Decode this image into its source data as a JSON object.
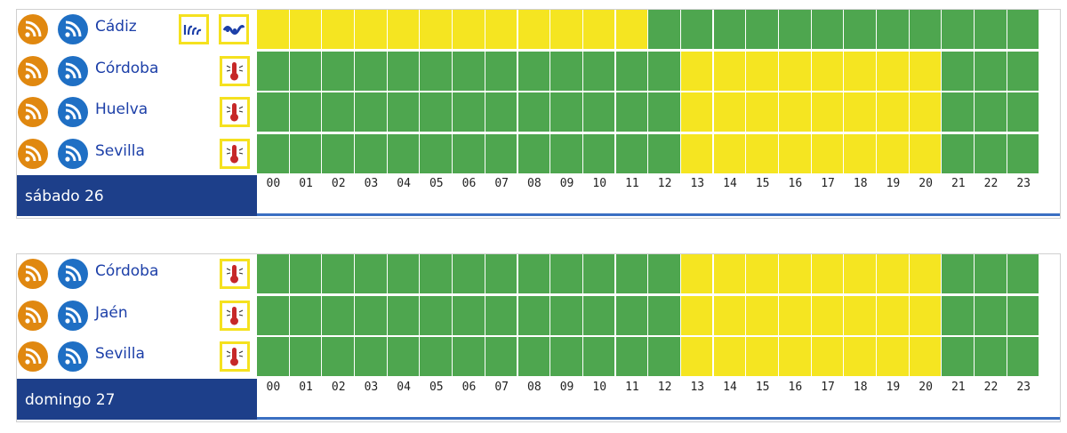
{
  "colors": {
    "green": "#4ea64f",
    "yellow": "#f5e521",
    "day_bg": "#1d3f8a",
    "link": "#1c3fa8"
  },
  "hours": [
    "00",
    "01",
    "02",
    "03",
    "04",
    "05",
    "06",
    "07",
    "08",
    "09",
    "10",
    "11",
    "12",
    "13",
    "14",
    "15",
    "16",
    "17",
    "18",
    "19",
    "20",
    "21",
    "22",
    "23"
  ],
  "days": [
    {
      "label": "sábado 26",
      "rows": [
        {
          "province": "Cádiz",
          "warnings": [
            "coastal-wave-icon",
            "wind-wave-icon"
          ],
          "levels": "yyyyyyyyyyyygggggggggggg"
        },
        {
          "province": "Córdoba",
          "warnings": [
            "thermometer-icon"
          ],
          "levels": "gggggggggggggyyyyyyyyggg"
        },
        {
          "province": "Huelva",
          "warnings": [
            "thermometer-icon"
          ],
          "levels": "gggggggggggggyyyyyyyyggg"
        },
        {
          "province": "Sevilla",
          "warnings": [
            "thermometer-icon"
          ],
          "levels": "gggggggggggggyyyyyyyyggg"
        }
      ]
    },
    {
      "label": "domingo 27",
      "rows": [
        {
          "province": "Córdoba",
          "warnings": [
            "thermometer-icon"
          ],
          "levels": "gggggggggggggyyyyyyyyggg"
        },
        {
          "province": "Jaén",
          "warnings": [
            "thermometer-icon"
          ],
          "levels": "gggggggggggggyyyyyyyyggg"
        },
        {
          "province": "Sevilla",
          "warnings": [
            "thermometer-icon"
          ],
          "levels": "gggggggggggggyyyyyyyyggg"
        }
      ]
    }
  ]
}
